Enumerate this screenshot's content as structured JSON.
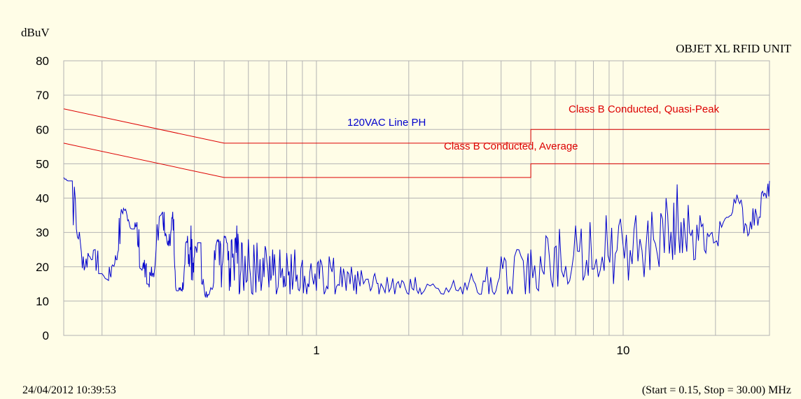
{
  "chart_data": {
    "type": "line",
    "ylabel": "dBuV",
    "title": "OBJET XL RFID UNIT",
    "x_scale": "log",
    "xlim": [
      0.15,
      30
    ],
    "ylim": [
      0,
      80
    ],
    "y_ticks": [
      0,
      10,
      20,
      30,
      40,
      50,
      60,
      70,
      80
    ],
    "x_tick_labels": [
      {
        "value": 1,
        "label": "1"
      },
      {
        "value": 10,
        "label": "10"
      }
    ],
    "grid": true,
    "timestamp": "24/04/2012 10:39:53",
    "range_note": "(Start = 0.15, Stop = 30.00) MHz",
    "colors": {
      "trace": "#0000cc",
      "limit": "#dd0000",
      "grid": "#b3b3b3",
      "background": "#fffde7"
    },
    "limit_lines": [
      {
        "name": "Class B Conducted, Quasi-Peak",
        "points": [
          [
            0.15,
            66
          ],
          [
            0.5,
            56
          ],
          [
            5,
            56
          ],
          [
            5,
            60
          ],
          [
            30,
            60
          ]
        ]
      },
      {
        "name": "Class B Conducted, Average",
        "points": [
          [
            0.15,
            56
          ],
          [
            0.5,
            46
          ],
          [
            5,
            46
          ],
          [
            5,
            50
          ],
          [
            30,
            50
          ]
        ]
      }
    ],
    "series": [
      {
        "name": "120VAC Line PH",
        "points": [
          [
            0.15,
            46
          ],
          [
            0.155,
            45
          ],
          [
            0.16,
            45
          ],
          [
            0.165,
            31
          ],
          [
            0.17,
            27
          ],
          [
            0.175,
            19
          ],
          [
            0.18,
            24
          ],
          [
            0.185,
            22
          ],
          [
            0.19,
            25
          ],
          [
            0.195,
            18
          ],
          [
            0.2,
            18
          ],
          [
            0.21,
            16
          ],
          [
            0.215,
            20
          ],
          [
            0.22,
            21
          ],
          [
            0.225,
            24
          ],
          [
            0.23,
            35
          ],
          [
            0.235,
            37
          ],
          [
            0.24,
            36
          ],
          [
            0.245,
            33
          ],
          [
            0.25,
            31
          ],
          [
            0.255,
            31
          ],
          [
            0.26,
            33
          ],
          [
            0.265,
            20
          ],
          [
            0.27,
            19
          ],
          [
            0.275,
            22
          ],
          [
            0.28,
            15
          ],
          [
            0.285,
            14
          ],
          [
            0.29,
            20
          ],
          [
            0.295,
            17
          ],
          [
            0.3,
            25
          ],
          [
            0.31,
            35
          ],
          [
            0.315,
            36
          ],
          [
            0.32,
            30
          ],
          [
            0.325,
            28
          ],
          [
            0.33,
            26
          ],
          [
            0.335,
            30
          ],
          [
            0.34,
            36
          ],
          [
            0.345,
            20
          ],
          [
            0.35,
            13
          ],
          [
            0.355,
            13
          ],
          [
            0.36,
            14
          ],
          [
            0.365,
            13
          ],
          [
            0.37,
            18
          ],
          [
            0.375,
            27
          ],
          [
            0.38,
            29
          ],
          [
            0.385,
            20
          ],
          [
            0.39,
            32
          ],
          [
            0.395,
            16
          ],
          [
            0.4,
            23
          ],
          [
            0.41,
            27
          ],
          [
            0.42,
            27
          ],
          [
            0.43,
            14
          ],
          [
            0.44,
            11
          ],
          [
            0.45,
            13
          ],
          [
            0.46,
            14
          ],
          [
            0.47,
            26
          ],
          [
            0.48,
            28
          ],
          [
            0.49,
            14
          ],
          [
            0.5,
            29
          ],
          [
            0.51,
            27
          ],
          [
            0.52,
            13
          ],
          [
            0.53,
            28
          ],
          [
            0.54,
            16
          ],
          [
            0.55,
            32
          ],
          [
            0.56,
            12
          ],
          [
            0.57,
            27
          ],
          [
            0.58,
            13
          ],
          [
            0.6,
            28
          ],
          [
            0.62,
            12
          ],
          [
            0.64,
            27
          ],
          [
            0.66,
            13
          ],
          [
            0.68,
            26
          ],
          [
            0.7,
            14
          ],
          [
            0.72,
            25
          ],
          [
            0.74,
            12
          ],
          [
            0.76,
            25
          ],
          [
            0.78,
            14
          ],
          [
            0.8,
            24
          ],
          [
            0.82,
            12
          ],
          [
            0.85,
            25
          ],
          [
            0.88,
            13
          ],
          [
            0.9,
            22
          ],
          [
            0.93,
            12
          ],
          [
            0.96,
            21
          ],
          [
            1.0,
            13
          ],
          [
            1.03,
            22
          ],
          [
            1.06,
            12
          ],
          [
            1.1,
            23
          ],
          [
            1.15,
            12
          ],
          [
            1.2,
            20
          ],
          [
            1.25,
            13
          ],
          [
            1.3,
            20
          ],
          [
            1.35,
            12
          ],
          [
            1.4,
            19
          ],
          [
            1.5,
            13
          ],
          [
            1.55,
            18
          ],
          [
            1.6,
            12
          ],
          [
            1.7,
            17
          ],
          [
            1.8,
            12
          ],
          [
            1.9,
            16
          ],
          [
            2.0,
            12
          ],
          [
            2.1,
            17
          ],
          [
            2.2,
            12
          ],
          [
            2.4,
            15
          ],
          [
            2.6,
            12
          ],
          [
            2.8,
            16
          ],
          [
            3.0,
            12
          ],
          [
            3.2,
            18
          ],
          [
            3.4,
            12
          ],
          [
            3.6,
            20
          ],
          [
            3.8,
            12
          ],
          [
            4.0,
            23
          ],
          [
            4.2,
            12
          ],
          [
            4.5,
            25
          ],
          [
            4.8,
            12
          ],
          [
            5.0,
            25
          ],
          [
            5.3,
            13
          ],
          [
            5.6,
            29
          ],
          [
            5.9,
            14
          ],
          [
            6.2,
            31
          ],
          [
            6.6,
            15
          ],
          [
            7.0,
            32
          ],
          [
            7.4,
            16
          ],
          [
            7.8,
            33
          ],
          [
            8.3,
            17
          ],
          [
            8.8,
            35
          ],
          [
            9.3,
            15
          ],
          [
            9.8,
            34
          ],
          [
            10.4,
            16
          ],
          [
            11.0,
            35
          ],
          [
            11.7,
            17
          ],
          [
            12.4,
            36
          ],
          [
            13.1,
            20
          ],
          [
            13.8,
            40
          ],
          [
            14.5,
            22
          ],
          [
            15.0,
            44
          ],
          [
            15.6,
            24
          ],
          [
            16.3,
            38
          ],
          [
            17.0,
            22
          ],
          [
            17.8,
            35
          ],
          [
            18.6,
            24
          ],
          [
            19.5,
            30
          ],
          [
            20.4,
            26
          ],
          [
            21.5,
            34
          ],
          [
            22.5,
            35
          ],
          [
            23.5,
            41
          ],
          [
            24.5,
            37
          ],
          [
            25.5,
            29
          ],
          [
            26.5,
            37
          ],
          [
            27.5,
            32
          ],
          [
            28.5,
            42
          ],
          [
            29.3,
            40
          ],
          [
            30.0,
            45
          ]
        ]
      }
    ]
  }
}
